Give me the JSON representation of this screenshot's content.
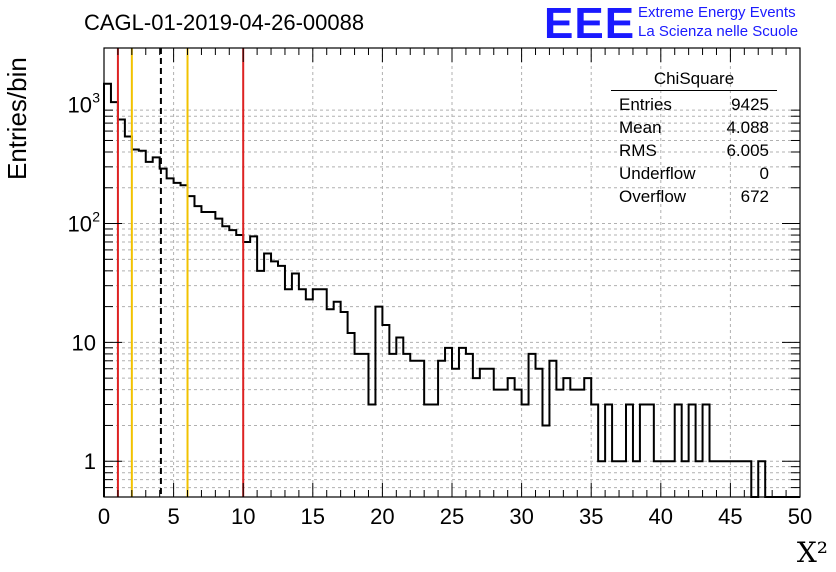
{
  "chart_data": {
    "type": "histogram",
    "title": "CAGL-01-2019-04-26-00088",
    "xlabel": "Χ²",
    "ylabel": "Entries/bin",
    "xlim": [
      0,
      50
    ],
    "ylim": [
      0.5,
      3000
    ],
    "yscale": "log",
    "grid": true,
    "bin_width": 0.5,
    "bin_start": 0,
    "x_ticks": [
      "0",
      "5",
      "10",
      "15",
      "20",
      "25",
      "30",
      "35",
      "40",
      "45",
      "50"
    ],
    "y_ticks": [
      {
        "value": 1,
        "label": "1"
      },
      {
        "value": 10,
        "label": "10"
      },
      {
        "value": 100,
        "label": "10",
        "sup": "2"
      },
      {
        "value": 1000,
        "label": "10",
        "sup": "3"
      }
    ],
    "values": [
      1500,
      1050,
      750,
      540,
      420,
      410,
      330,
      360,
      290,
      240,
      220,
      210,
      170,
      140,
      125,
      125,
      110,
      95,
      88,
      80,
      70,
      78,
      40,
      56,
      48,
      44,
      28,
      38,
      28,
      23,
      28,
      28,
      19,
      22,
      18,
      12,
      8,
      8,
      3,
      20,
      14,
      8,
      11,
      8,
      7,
      7,
      3,
      3,
      7,
      9,
      6,
      9,
      8,
      5,
      6,
      6,
      4,
      4,
      5,
      4,
      3,
      8,
      6,
      2,
      7,
      4,
      5,
      4,
      4,
      5,
      3,
      1,
      3,
      1,
      1,
      3,
      1,
      3,
      3,
      1,
      1,
      1,
      3,
      1,
      3,
      1,
      3,
      1,
      1,
      1,
      1,
      1,
      1,
      0,
      1,
      0,
      0,
      0,
      0,
      0
    ],
    "vertical_lines": [
      {
        "x": 1.0,
        "color": "#dd2222",
        "style": "solid"
      },
      {
        "x": 2.0,
        "color": "#f2c200",
        "style": "solid"
      },
      {
        "x": 4.088,
        "color": "#000000",
        "style": "dashed"
      },
      {
        "x": 6.0,
        "color": "#f2c200",
        "style": "solid"
      },
      {
        "x": 10.0,
        "color": "#dd2222",
        "style": "solid"
      }
    ]
  },
  "stats": {
    "title": "ChiSquare",
    "rows": [
      {
        "label": "Entries",
        "value": "9425"
      },
      {
        "label": "Mean",
        "value": "4.088"
      },
      {
        "label": "RMS",
        "value": "6.005"
      },
      {
        "label": "Underflow",
        "value": "0"
      },
      {
        "label": "Overflow",
        "value": "672"
      }
    ]
  },
  "logo": {
    "mark": "EEE",
    "line1": "Extreme Energy Events",
    "line2": "La Scienza nelle Scuole",
    "color": "#1a1aff"
  }
}
